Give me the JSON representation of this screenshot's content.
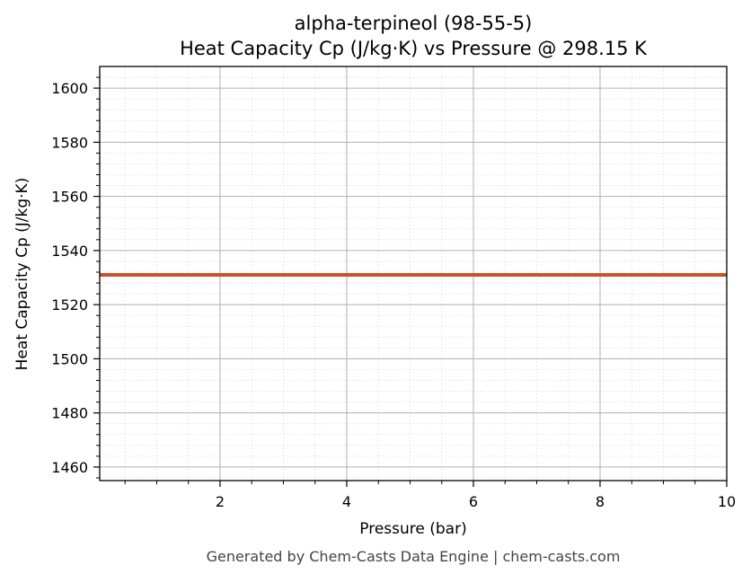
{
  "chart_data": {
    "type": "line",
    "title": "alpha-terpineol (98-55-5)",
    "subtitle": "Heat Capacity Cp (J/kg·K) vs Pressure @ 298.15 K",
    "xlabel": "Pressure (bar)",
    "ylabel": "Heat Capacity Cp (J/kg·K)",
    "xlim": [
      0.1,
      10
    ],
    "ylim": [
      1455,
      1608
    ],
    "x_ticks": [
      2,
      4,
      6,
      8,
      10
    ],
    "x_tick_labels": [
      "2",
      "4",
      "6",
      "8",
      "10"
    ],
    "y_ticks": [
      1460,
      1480,
      1500,
      1520,
      1540,
      1560,
      1580,
      1600
    ],
    "y_tick_labels": [
      "1460",
      "1480",
      "1500",
      "1520",
      "1540",
      "1560",
      "1580",
      "1600"
    ],
    "grid": true,
    "minor_grid": true,
    "series": [
      {
        "color": "#c8522a",
        "x": [
          0.1,
          10
        ],
        "y": [
          1531,
          1531
        ]
      }
    ]
  },
  "footer": "Generated by Chem-Casts Data Engine | chem-casts.com"
}
